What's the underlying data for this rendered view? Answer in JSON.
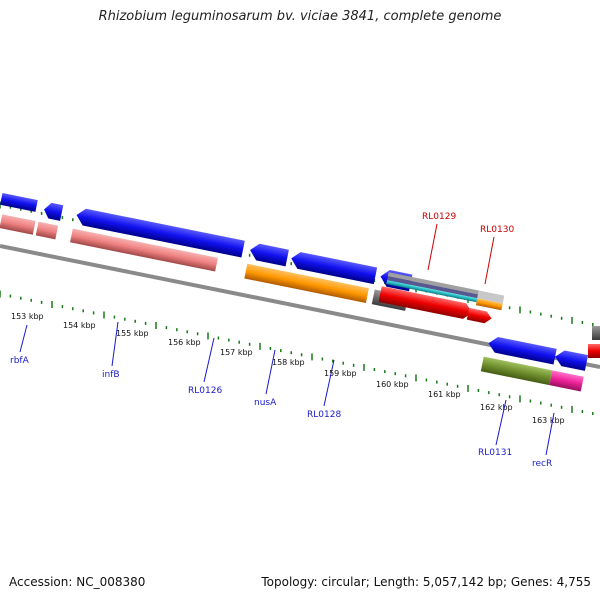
{
  "title": "Rhizobium leguminosarum bv. viciae 3841, complete genome",
  "accession": "Accession: NC_008380",
  "summary": "Topology: circular; Length: 5,057,142 bp; Genes: 4,755",
  "colors": {
    "backbone": "#8c8c8c",
    "tick": "#1a7a1a",
    "label_blue": "#1a1acc",
    "label_red": "#cc0000"
  },
  "scale_ticks": [
    "153 kbp",
    "154 kbp",
    "155 kbp",
    "156 kbp",
    "157 kbp",
    "158 kbp",
    "159 kbp",
    "160 kbp",
    "161 kbp",
    "162 kbp",
    "163 kbp"
  ],
  "gene_labels": [
    {
      "text": "rbfA",
      "color": "blue"
    },
    {
      "text": "infB",
      "color": "blue"
    },
    {
      "text": "RL0126",
      "color": "blue"
    },
    {
      "text": "nusA",
      "color": "blue"
    },
    {
      "text": "RL0128",
      "color": "blue"
    },
    {
      "text": "RL0129",
      "color": "red"
    },
    {
      "text": "RL0130",
      "color": "red"
    },
    {
      "text": "RL0131",
      "color": "blue"
    },
    {
      "text": "recR",
      "color": "blue"
    }
  ]
}
